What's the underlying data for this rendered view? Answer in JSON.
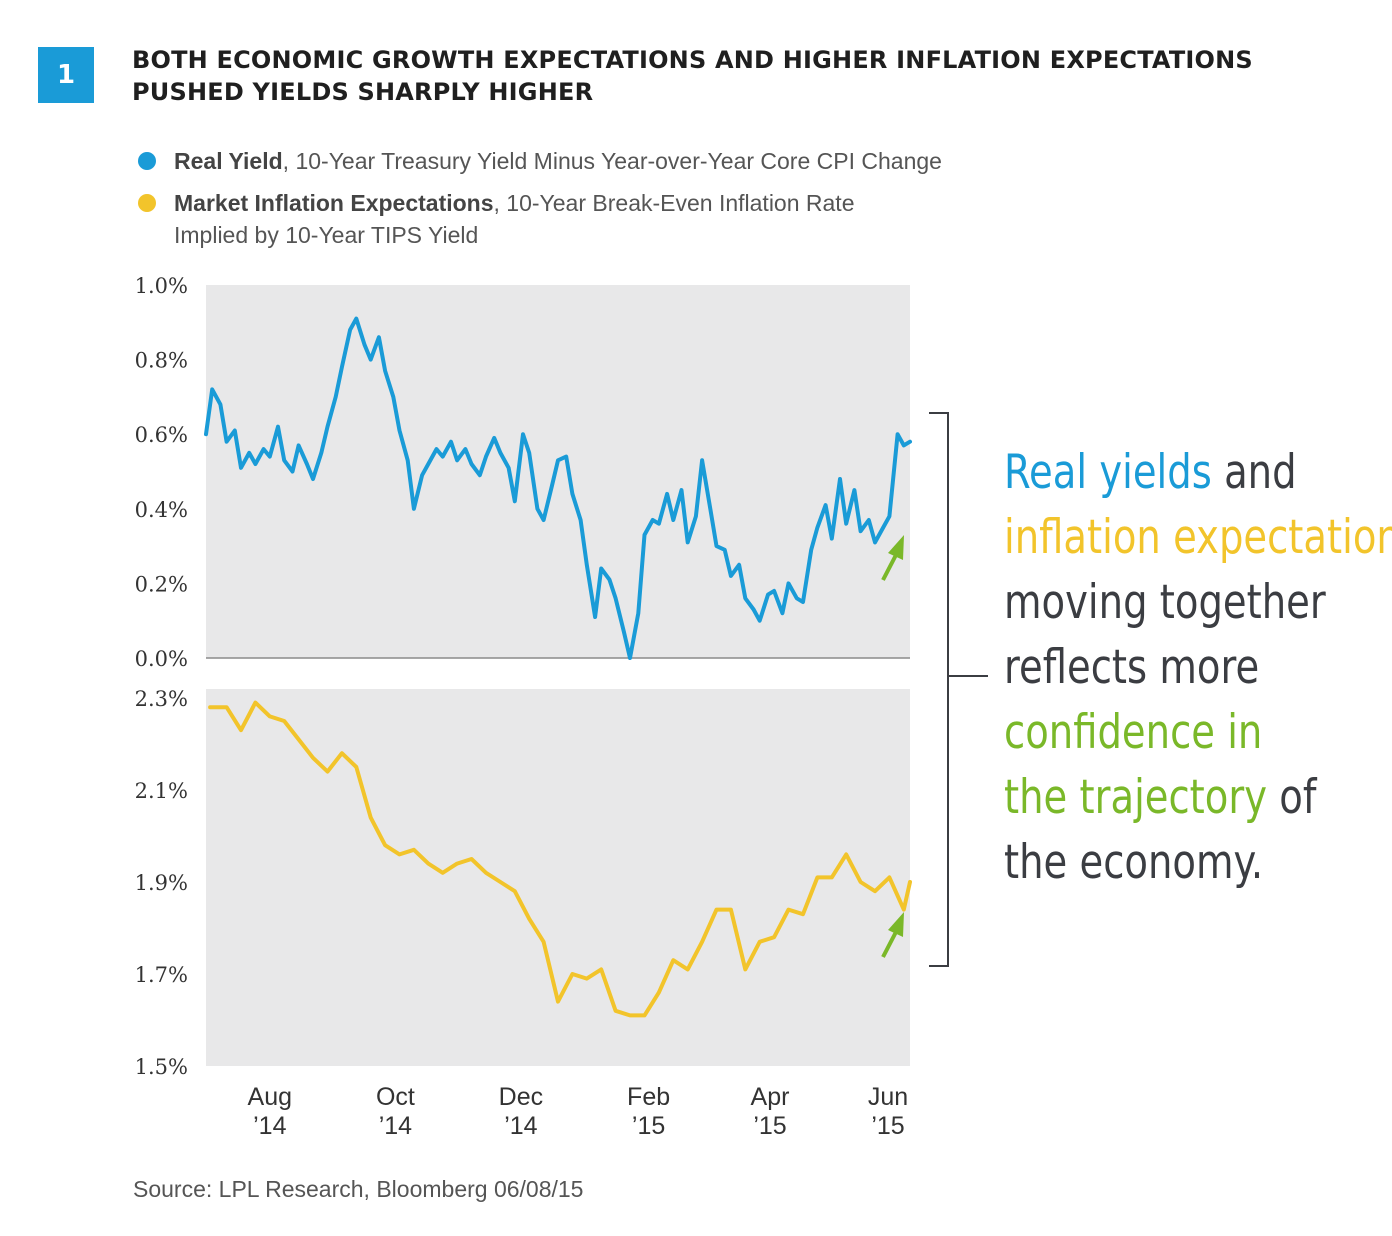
{
  "figure": {
    "number": "1",
    "title": "BOTH ECONOMIC GROWTH EXPECTATIONS AND HIGHER INFLATION EXPECTATIONS PUSHED YIELDS SHARPLY HIGHER"
  },
  "legend": [
    {
      "bold": "Real Yield",
      "rest": ", 10-Year Treasury Yield Minus Year-over-Year Core CPI Change",
      "rest2": "",
      "color": "#1a9bd7"
    },
    {
      "bold": "Market Inflation Expectations",
      "rest": ", 10-Year Break-Even Inflation Rate",
      "rest2": "Implied by 10-Year TIPS Yield",
      "color": "#f2c42b"
    }
  ],
  "callout": {
    "l1a": "Real yields",
    "l1b": " and",
    "l2": "inflation expectations",
    "l3": "moving together",
    "l4": "reflects more",
    "l5": "confidence in",
    "l6a": "the trajectory",
    "l6b": " of",
    "l7": "the economy."
  },
  "source": "Source: LPL Research, Bloomberg   06/08/15",
  "colors": {
    "real_yield": "#1a9bd7",
    "inflation": "#f2c42b",
    "arrow": "#7ab829",
    "panel": "#e8e8e9"
  },
  "chart_data": [
    {
      "type": "line",
      "series": [
        {
          "name": "Real Yield",
          "x": [
            "2014-07-01",
            "2014-07-04",
            "2014-07-08",
            "2014-07-11",
            "2014-07-15",
            "2014-07-18",
            "2014-07-22",
            "2014-07-25",
            "2014-07-29",
            "2014-08-01",
            "2014-08-05",
            "2014-08-08",
            "2014-08-12",
            "2014-08-15",
            "2014-08-19",
            "2014-08-22",
            "2014-08-26",
            "2014-08-29",
            "2014-09-02",
            "2014-09-05",
            "2014-09-09",
            "2014-09-12",
            "2014-09-16",
            "2014-09-19",
            "2014-09-23",
            "2014-09-26",
            "2014-09-30",
            "2014-10-03",
            "2014-10-07",
            "2014-10-10",
            "2014-10-14",
            "2014-10-17",
            "2014-10-21",
            "2014-10-24",
            "2014-10-28",
            "2014-10-31",
            "2014-11-04",
            "2014-11-07",
            "2014-11-11",
            "2014-11-14",
            "2014-11-18",
            "2014-11-21",
            "2014-11-25",
            "2014-11-28",
            "2014-12-02",
            "2014-12-05",
            "2014-12-09",
            "2014-12-12",
            "2014-12-16",
            "2014-12-19",
            "2014-12-23",
            "2014-12-26",
            "2014-12-30",
            "2015-01-02",
            "2015-01-06",
            "2015-01-09",
            "2015-01-13",
            "2015-01-16",
            "2015-01-20",
            "2015-01-23",
            "2015-01-27",
            "2015-01-30",
            "2015-02-03",
            "2015-02-06",
            "2015-02-10",
            "2015-02-13",
            "2015-02-17",
            "2015-02-20",
            "2015-02-24",
            "2015-02-27",
            "2015-03-03",
            "2015-03-06",
            "2015-03-10",
            "2015-03-13",
            "2015-03-17",
            "2015-03-20",
            "2015-03-24",
            "2015-03-27",
            "2015-03-31",
            "2015-04-03",
            "2015-04-07",
            "2015-04-10",
            "2015-04-14",
            "2015-04-17",
            "2015-04-21",
            "2015-04-24",
            "2015-04-28",
            "2015-05-01",
            "2015-05-05",
            "2015-05-08",
            "2015-05-12",
            "2015-05-15",
            "2015-05-19",
            "2015-05-22",
            "2015-05-26",
            "2015-05-29",
            "2015-06-02",
            "2015-06-05",
            "2015-06-08"
          ],
          "values": [
            0.6,
            0.72,
            0.68,
            0.58,
            0.61,
            0.51,
            0.55,
            0.52,
            0.56,
            0.54,
            0.62,
            0.53,
            0.5,
            0.57,
            0.52,
            0.48,
            0.55,
            0.62,
            0.7,
            0.78,
            0.88,
            0.91,
            0.84,
            0.8,
            0.86,
            0.77,
            0.7,
            0.61,
            0.53,
            0.4,
            0.49,
            0.52,
            0.56,
            0.54,
            0.58,
            0.53,
            0.56,
            0.52,
            0.49,
            0.54,
            0.59,
            0.55,
            0.51,
            0.42,
            0.6,
            0.55,
            0.4,
            0.37,
            0.46,
            0.53,
            0.54,
            0.44,
            0.37,
            0.25,
            0.11,
            0.24,
            0.21,
            0.16,
            0.07,
            0.0,
            0.12,
            0.33,
            0.37,
            0.36,
            0.44,
            0.37,
            0.45,
            0.31,
            0.38,
            0.53,
            0.4,
            0.3,
            0.29,
            0.22,
            0.25,
            0.16,
            0.13,
            0.1,
            0.17,
            0.18,
            0.12,
            0.2,
            0.16,
            0.15,
            0.29,
            0.35,
            0.41,
            0.32,
            0.48,
            0.36,
            0.45,
            0.34,
            0.37,
            0.31,
            0.35,
            0.38,
            0.6,
            0.57,
            0.58
          ]
        }
      ],
      "ylabel": "",
      "yticks": [
        "1.0%",
        "0.8%",
        "0.6%",
        "0.4%",
        "0.2%",
        "0.0%"
      ],
      "ylim": [
        0.0,
        1.0
      ]
    },
    {
      "type": "line",
      "series": [
        {
          "name": "Market Inflation Expectations",
          "x": [
            "2014-07-03",
            "2014-07-11",
            "2014-07-18",
            "2014-07-25",
            "2014-08-01",
            "2014-08-08",
            "2014-08-15",
            "2014-08-22",
            "2014-08-29",
            "2014-09-05",
            "2014-09-12",
            "2014-09-19",
            "2014-09-26",
            "2014-10-03",
            "2014-10-10",
            "2014-10-17",
            "2014-10-24",
            "2014-10-31",
            "2014-11-07",
            "2014-11-14",
            "2014-11-21",
            "2014-11-28",
            "2014-12-05",
            "2014-12-12",
            "2014-12-19",
            "2014-12-26",
            "2015-01-02",
            "2015-01-09",
            "2015-01-16",
            "2015-01-23",
            "2015-01-30",
            "2015-02-06",
            "2015-02-13",
            "2015-02-20",
            "2015-02-27",
            "2015-03-06",
            "2015-03-13",
            "2015-03-20",
            "2015-03-27",
            "2015-04-03",
            "2015-04-10",
            "2015-04-17",
            "2015-04-24",
            "2015-05-01",
            "2015-05-08",
            "2015-05-15",
            "2015-05-22",
            "2015-05-29",
            "2015-06-05",
            "2015-06-08"
          ],
          "values": [
            2.28,
            2.28,
            2.23,
            2.29,
            2.26,
            2.25,
            2.21,
            2.17,
            2.14,
            2.18,
            2.15,
            2.04,
            1.98,
            1.96,
            1.97,
            1.94,
            1.92,
            1.94,
            1.95,
            1.92,
            1.9,
            1.88,
            1.82,
            1.77,
            1.64,
            1.7,
            1.69,
            1.71,
            1.62,
            1.61,
            1.61,
            1.66,
            1.73,
            1.71,
            1.77,
            1.84,
            1.84,
            1.71,
            1.77,
            1.78,
            1.84,
            1.83,
            1.91,
            1.91,
            1.96,
            1.9,
            1.88,
            1.91,
            1.84,
            1.9
          ]
        }
      ],
      "ylabel": "",
      "yticks": [
        "2.3%",
        "2.1%",
        "1.9%",
        "1.7%",
        "1.5%"
      ],
      "ylim": [
        1.5,
        2.3
      ]
    }
  ],
  "x_axis": {
    "xlim": [
      "2014-07-01",
      "2015-06-08"
    ],
    "ticks": [
      {
        "date": "2014-08-01",
        "month": "Aug",
        "year": "’14"
      },
      {
        "date": "2014-10-01",
        "month": "Oct",
        "year": "’14"
      },
      {
        "date": "2014-12-01",
        "month": "Dec",
        "year": "’14"
      },
      {
        "date": "2015-02-01",
        "month": "Feb",
        "year": "’15"
      },
      {
        "date": "2015-04-01",
        "month": "Apr",
        "year": "’15"
      },
      {
        "date": "2015-06-01",
        "month": "Jun",
        "year": "’15"
      }
    ]
  }
}
